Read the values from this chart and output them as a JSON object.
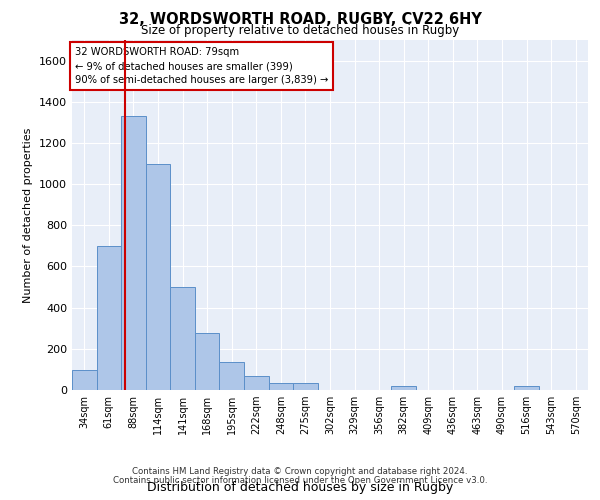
{
  "title_line1": "32, WORDSWORTH ROAD, RUGBY, CV22 6HY",
  "title_line2": "Size of property relative to detached houses in Rugby",
  "xlabel": "Distribution of detached houses by size in Rugby",
  "ylabel": "Number of detached properties",
  "footer_line1": "Contains HM Land Registry data © Crown copyright and database right 2024.",
  "footer_line2": "Contains public sector information licensed under the Open Government Licence v3.0.",
  "annotation_line1": "32 WORDSWORTH ROAD: 79sqm",
  "annotation_line2": "← 9% of detached houses are smaller (399)",
  "annotation_line3": "90% of semi-detached houses are larger (3,839) →",
  "bar_color": "#aec6e8",
  "bar_edge_color": "#5b8fc9",
  "highlight_color": "#cc0000",
  "categories": [
    "34sqm",
    "61sqm",
    "88sqm",
    "114sqm",
    "141sqm",
    "168sqm",
    "195sqm",
    "222sqm",
    "248sqm",
    "275sqm",
    "302sqm",
    "329sqm",
    "356sqm",
    "382sqm",
    "409sqm",
    "436sqm",
    "463sqm",
    "490sqm",
    "516sqm",
    "543sqm",
    "570sqm"
  ],
  "values": [
    95,
    700,
    1330,
    1100,
    500,
    275,
    135,
    70,
    35,
    35,
    0,
    0,
    0,
    20,
    0,
    0,
    0,
    0,
    20,
    0,
    0
  ],
  "ylim": [
    0,
    1700
  ],
  "yticks": [
    0,
    200,
    400,
    600,
    800,
    1000,
    1200,
    1400,
    1600
  ],
  "red_line_x": 1.65,
  "plot_bg_color": "#e8eef8"
}
